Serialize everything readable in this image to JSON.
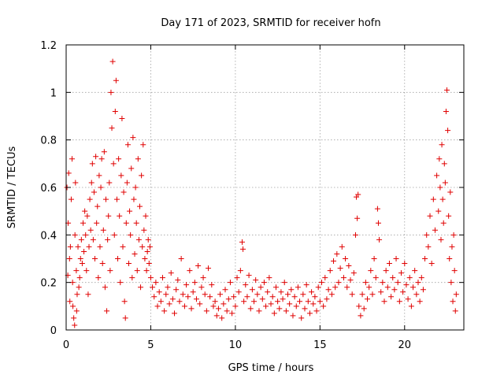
{
  "chart_data": {
    "type": "scatter",
    "title": "Day 171 of 2023, SRMTID for receiver hofn",
    "xlabel": "GPS time / hours",
    "ylabel": "SRMTID / TECUs",
    "xlim": [
      0,
      23.5
    ],
    "ylim": [
      0,
      1.2
    ],
    "xticks": [
      0,
      5,
      10,
      15,
      20
    ],
    "xtick_labels": [
      "0",
      "5",
      "10",
      "15",
      "20"
    ],
    "yticks": [
      0,
      0.2,
      0.4,
      0.6,
      0.8,
      1.0,
      1.2
    ],
    "ytick_labels": [
      "0",
      "0.2",
      "0.4",
      "0.6",
      "0.8",
      "1",
      "1.2"
    ],
    "grid": true,
    "marker": "plus",
    "color": "#e00000",
    "series": [
      {
        "name": "SRMTID",
        "points": [
          [
            0.05,
            0.6
          ],
          [
            0.1,
            0.23
          ],
          [
            0.12,
            0.45
          ],
          [
            0.15,
            0.66
          ],
          [
            0.2,
            0.3
          ],
          [
            0.22,
            0.12
          ],
          [
            0.25,
            0.35
          ],
          [
            0.3,
            0.55
          ],
          [
            0.35,
            0.72
          ],
          [
            0.38,
            0.2
          ],
          [
            0.4,
            0.1
          ],
          [
            0.45,
            0.05
          ],
          [
            0.5,
            0.02
          ],
          [
            0.52,
            0.4
          ],
          [
            0.55,
            0.62
          ],
          [
            0.6,
            0.25
          ],
          [
            0.62,
            0.08
          ],
          [
            0.65,
            0.15
          ],
          [
            0.7,
            0.35
          ],
          [
            0.75,
            0.18
          ],
          [
            0.8,
            0.22
          ],
          [
            0.85,
            0.3
          ],
          [
            0.9,
            0.38
          ],
          [
            0.95,
            0.28
          ],
          [
            1.0,
            0.45
          ],
          [
            1.05,
            0.33
          ],
          [
            1.1,
            0.5
          ],
          [
            1.15,
            0.4
          ],
          [
            1.2,
            0.25
          ],
          [
            1.25,
            0.48
          ],
          [
            1.3,
            0.15
          ],
          [
            1.35,
            0.35
          ],
          [
            1.4,
            0.55
          ],
          [
            1.45,
            0.42
          ],
          [
            1.5,
            0.62
          ],
          [
            1.55,
            0.7
          ],
          [
            1.6,
            0.38
          ],
          [
            1.65,
            0.58
          ],
          [
            1.7,
            0.3
          ],
          [
            1.75,
            0.73
          ],
          [
            1.8,
            0.45
          ],
          [
            1.85,
            0.52
          ],
          [
            1.9,
            0.22
          ],
          [
            1.95,
            0.65
          ],
          [
            2.0,
            0.35
          ],
          [
            2.05,
            0.6
          ],
          [
            2.1,
            0.72
          ],
          [
            2.15,
            0.28
          ],
          [
            2.2,
            0.42
          ],
          [
            2.25,
            0.75
          ],
          [
            2.3,
            0.18
          ],
          [
            2.35,
            0.55
          ],
          [
            2.4,
            0.08
          ],
          [
            2.45,
            0.38
          ],
          [
            2.5,
            0.48
          ],
          [
            2.55,
            0.62
          ],
          [
            2.6,
            0.25
          ],
          [
            2.65,
            1.0
          ],
          [
            2.7,
            0.85
          ],
          [
            2.75,
            1.13
          ],
          [
            2.8,
            0.7
          ],
          [
            2.85,
            0.4
          ],
          [
            2.9,
            0.92
          ],
          [
            2.95,
            1.05
          ],
          [
            3.0,
            0.55
          ],
          [
            3.05,
            0.3
          ],
          [
            3.1,
            0.72
          ],
          [
            3.15,
            0.48
          ],
          [
            3.2,
            0.2
          ],
          [
            3.25,
            0.65
          ],
          [
            3.3,
            0.89
          ],
          [
            3.35,
            0.35
          ],
          [
            3.4,
            0.58
          ],
          [
            3.45,
            0.12
          ],
          [
            3.5,
            0.05
          ],
          [
            3.55,
            0.45
          ],
          [
            3.6,
            0.62
          ],
          [
            3.65,
            0.78
          ],
          [
            3.7,
            0.28
          ],
          [
            3.75,
            0.5
          ],
          [
            3.8,
            0.4
          ],
          [
            3.85,
            0.68
          ],
          [
            3.9,
            0.22
          ],
          [
            3.95,
            0.81
          ],
          [
            4.0,
            0.55
          ],
          [
            4.05,
            0.32
          ],
          [
            4.1,
            0.6
          ],
          [
            4.15,
            0.45
          ],
          [
            4.2,
            0.25
          ],
          [
            4.25,
            0.72
          ],
          [
            4.3,
            0.38
          ],
          [
            4.35,
            0.52
          ],
          [
            4.4,
            0.18
          ],
          [
            4.45,
            0.65
          ],
          [
            4.5,
            0.35
          ],
          [
            4.55,
            0.78
          ],
          [
            4.6,
            0.42
          ],
          [
            4.65,
            0.3
          ],
          [
            4.7,
            0.48
          ],
          [
            4.75,
            0.25
          ],
          [
            4.8,
            0.33
          ],
          [
            4.85,
            0.38
          ],
          [
            4.9,
            0.28
          ],
          [
            4.95,
            0.35
          ],
          [
            5.0,
            0.22
          ],
          [
            5.1,
            0.18
          ],
          [
            5.2,
            0.14
          ],
          [
            5.3,
            0.2
          ],
          [
            5.4,
            0.1
          ],
          [
            5.5,
            0.16
          ],
          [
            5.6,
            0.12
          ],
          [
            5.7,
            0.22
          ],
          [
            5.8,
            0.08
          ],
          [
            5.9,
            0.15
          ],
          [
            6.0,
            0.18
          ],
          [
            6.1,
            0.11
          ],
          [
            6.2,
            0.24
          ],
          [
            6.3,
            0.13
          ],
          [
            6.4,
            0.07
          ],
          [
            6.5,
            0.17
          ],
          [
            6.6,
            0.21
          ],
          [
            6.7,
            0.12
          ],
          [
            6.8,
            0.3
          ],
          [
            6.9,
            0.15
          ],
          [
            7.0,
            0.1
          ],
          [
            7.1,
            0.19
          ],
          [
            7.2,
            0.14
          ],
          [
            7.3,
            0.25
          ],
          [
            7.4,
            0.09
          ],
          [
            7.5,
            0.16
          ],
          [
            7.6,
            0.2
          ],
          [
            7.7,
            0.13
          ],
          [
            7.8,
            0.27
          ],
          [
            7.9,
            0.11
          ],
          [
            8.0,
            0.18
          ],
          [
            8.1,
            0.22
          ],
          [
            8.2,
            0.15
          ],
          [
            8.3,
            0.08
          ],
          [
            8.4,
            0.26
          ],
          [
            8.5,
            0.14
          ],
          [
            8.6,
            0.19
          ],
          [
            8.7,
            0.1
          ],
          [
            8.8,
            0.12
          ],
          [
            8.9,
            0.06
          ],
          [
            9.0,
            0.09
          ],
          [
            9.1,
            0.15
          ],
          [
            9.2,
            0.05
          ],
          [
            9.3,
            0.11
          ],
          [
            9.4,
            0.17
          ],
          [
            9.5,
            0.08
          ],
          [
            9.6,
            0.13
          ],
          [
            9.7,
            0.2
          ],
          [
            9.8,
            0.07
          ],
          [
            9.9,
            0.14
          ],
          [
            10.0,
            0.1
          ],
          [
            10.1,
            0.22
          ],
          [
            10.2,
            0.16
          ],
          [
            10.3,
            0.25
          ],
          [
            10.4,
            0.37
          ],
          [
            10.45,
            0.34
          ],
          [
            10.5,
            0.12
          ],
          [
            10.6,
            0.19
          ],
          [
            10.7,
            0.14
          ],
          [
            10.8,
            0.23
          ],
          [
            10.9,
            0.09
          ],
          [
            11.0,
            0.17
          ],
          [
            11.1,
            0.12
          ],
          [
            11.2,
            0.21
          ],
          [
            11.3,
            0.15
          ],
          [
            11.4,
            0.08
          ],
          [
            11.5,
            0.18
          ],
          [
            11.6,
            0.13
          ],
          [
            11.7,
            0.2
          ],
          [
            11.8,
            0.1
          ],
          [
            11.9,
            0.16
          ],
          [
            12.0,
            0.22
          ],
          [
            12.1,
            0.11
          ],
          [
            12.2,
            0.14
          ],
          [
            12.3,
            0.07
          ],
          [
            12.4,
            0.18
          ],
          [
            12.5,
            0.12
          ],
          [
            12.6,
            0.09
          ],
          [
            12.7,
            0.16
          ],
          [
            12.8,
            0.13
          ],
          [
            12.9,
            0.2
          ],
          [
            13.0,
            0.08
          ],
          [
            13.1,
            0.15
          ],
          [
            13.2,
            0.11
          ],
          [
            13.3,
            0.17
          ],
          [
            13.4,
            0.06
          ],
          [
            13.5,
            0.14
          ],
          [
            13.6,
            0.1
          ],
          [
            13.7,
            0.18
          ],
          [
            13.8,
            0.12
          ],
          [
            13.9,
            0.05
          ],
          [
            14.0,
            0.15
          ],
          [
            14.1,
            0.09
          ],
          [
            14.2,
            0.19
          ],
          [
            14.3,
            0.12
          ],
          [
            14.4,
            0.07
          ],
          [
            14.5,
            0.16
          ],
          [
            14.6,
            0.11
          ],
          [
            14.7,
            0.14
          ],
          [
            14.8,
            0.08
          ],
          [
            14.9,
            0.18
          ],
          [
            15.0,
            0.12
          ],
          [
            15.1,
            0.2
          ],
          [
            15.2,
            0.1
          ],
          [
            15.3,
            0.22
          ],
          [
            15.4,
            0.13
          ],
          [
            15.5,
            0.17
          ],
          [
            15.6,
            0.25
          ],
          [
            15.7,
            0.15
          ],
          [
            15.8,
            0.29
          ],
          [
            15.9,
            0.18
          ],
          [
            16.0,
            0.32
          ],
          [
            16.1,
            0.2
          ],
          [
            16.2,
            0.26
          ],
          [
            16.3,
            0.35
          ],
          [
            16.4,
            0.22
          ],
          [
            16.5,
            0.3
          ],
          [
            16.6,
            0.18
          ],
          [
            16.7,
            0.27
          ],
          [
            16.8,
            0.21
          ],
          [
            16.9,
            0.15
          ],
          [
            17.0,
            0.24
          ],
          [
            17.1,
            0.4
          ],
          [
            17.15,
            0.56
          ],
          [
            17.2,
            0.47
          ],
          [
            17.25,
            0.57
          ],
          [
            17.3,
            0.1
          ],
          [
            17.4,
            0.06
          ],
          [
            17.5,
            0.15
          ],
          [
            17.6,
            0.09
          ],
          [
            17.7,
            0.2
          ],
          [
            17.8,
            0.13
          ],
          [
            17.9,
            0.18
          ],
          [
            18.0,
            0.25
          ],
          [
            18.1,
            0.15
          ],
          [
            18.2,
            0.3
          ],
          [
            18.3,
            0.22
          ],
          [
            18.4,
            0.51
          ],
          [
            18.45,
            0.45
          ],
          [
            18.5,
            0.38
          ],
          [
            18.6,
            0.16
          ],
          [
            18.7,
            0.2
          ],
          [
            18.8,
            0.12
          ],
          [
            18.9,
            0.25
          ],
          [
            19.0,
            0.18
          ],
          [
            19.1,
            0.28
          ],
          [
            19.2,
            0.14
          ],
          [
            19.3,
            0.22
          ],
          [
            19.4,
            0.17
          ],
          [
            19.5,
            0.3
          ],
          [
            19.6,
            0.2
          ],
          [
            19.7,
            0.12
          ],
          [
            19.8,
            0.24
          ],
          [
            19.9,
            0.16
          ],
          [
            20.0,
            0.28
          ],
          [
            20.1,
            0.19
          ],
          [
            20.2,
            0.13
          ],
          [
            20.3,
            0.22
          ],
          [
            20.4,
            0.1
          ],
          [
            20.5,
            0.18
          ],
          [
            20.6,
            0.25
          ],
          [
            20.7,
            0.15
          ],
          [
            20.8,
            0.2
          ],
          [
            20.9,
            0.12
          ],
          [
            21.0,
            0.22
          ],
          [
            21.1,
            0.17
          ],
          [
            21.2,
            0.3
          ],
          [
            21.3,
            0.4
          ],
          [
            21.4,
            0.35
          ],
          [
            21.5,
            0.48
          ],
          [
            21.6,
            0.28
          ],
          [
            21.7,
            0.55
          ],
          [
            21.8,
            0.42
          ],
          [
            21.9,
            0.65
          ],
          [
            22.0,
            0.5
          ],
          [
            22.05,
            0.72
          ],
          [
            22.1,
            0.6
          ],
          [
            22.15,
            0.38
          ],
          [
            22.2,
            0.78
          ],
          [
            22.25,
            0.55
          ],
          [
            22.3,
            0.45
          ],
          [
            22.35,
            0.7
          ],
          [
            22.4,
            0.62
          ],
          [
            22.45,
            0.92
          ],
          [
            22.5,
            1.01
          ],
          [
            22.55,
            0.84
          ],
          [
            22.6,
            0.48
          ],
          [
            22.65,
            0.3
          ],
          [
            22.7,
            0.58
          ],
          [
            22.75,
            0.2
          ],
          [
            22.8,
            0.35
          ],
          [
            22.85,
            0.12
          ],
          [
            22.9,
            0.4
          ],
          [
            22.95,
            0.25
          ],
          [
            23.0,
            0.08
          ],
          [
            23.05,
            0.15
          ]
        ]
      }
    ]
  }
}
